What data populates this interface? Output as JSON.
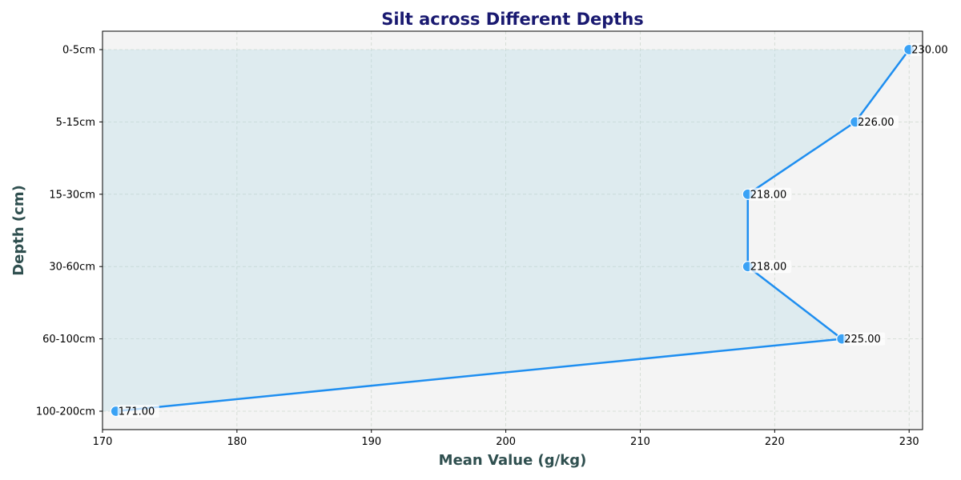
{
  "chart_data": {
    "type": "line",
    "title": "Silt across Different Depths",
    "xlabel": "Mean Value (g/kg)",
    "ylabel": "Depth (cm)",
    "xlim": [
      170,
      231
    ],
    "x_ticks": [
      "170",
      "180",
      "190",
      "200",
      "210",
      "220",
      "230"
    ],
    "categories": [
      "0-5cm",
      "5-15cm",
      "15-30cm",
      "30-60cm",
      "60-100cm",
      "100-200cm"
    ],
    "values": [
      230,
      226,
      218,
      218,
      225,
      171
    ],
    "data_labels": [
      "230.00",
      "226.00",
      "218.00",
      "218.00",
      "225.00",
      "171.00"
    ],
    "grid": true,
    "colors": {
      "line": "#1e8ef0",
      "marker": "#3aa2f5",
      "fill": "#add8e6",
      "plot_background": "#f4f4f4"
    }
  }
}
